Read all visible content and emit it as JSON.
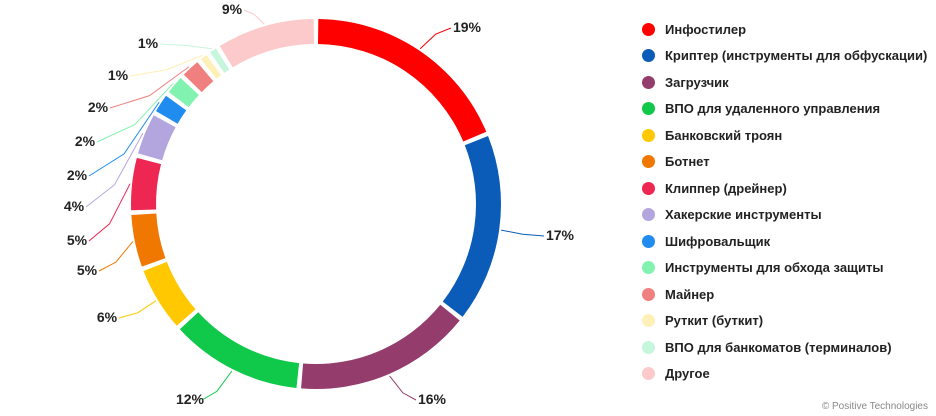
{
  "chart_data": {
    "type": "pie",
    "variant": "donut",
    "legend_position": "right",
    "slices": [
      {
        "label": "Инфостилер",
        "value": 19,
        "display": "19%",
        "color": "#ff0000"
      },
      {
        "label": "Криптер (инструменты для обфускации)",
        "value": 17,
        "display": "17%",
        "color": "#0a5cb8"
      },
      {
        "label": "Загрузчик",
        "value": 16,
        "display": "16%",
        "color": "#943c6c"
      },
      {
        "label": "ВПО для удаленного управления",
        "value": 12,
        "display": "12%",
        "color": "#10c84a"
      },
      {
        "label": "Банковский троян",
        "value": 6,
        "display": "6%",
        "color": "#ffc800"
      },
      {
        "label": "Ботнет",
        "value": 5,
        "display": "5%",
        "color": "#f07800"
      },
      {
        "label": "Клиппер (дрейнер)",
        "value": 5,
        "display": "5%",
        "color": "#ee2652"
      },
      {
        "label": "Хакерские инструменты",
        "value": 4,
        "display": "4%",
        "color": "#b3a6de"
      },
      {
        "label": "Шифровальщик",
        "value": 2,
        "display": "2%",
        "color": "#208cf0"
      },
      {
        "label": "Инструменты для обхода защиты",
        "value": 2,
        "display": "2%",
        "color": "#82f2b0"
      },
      {
        "label": "Майнер",
        "value": 2,
        "display": "2%",
        "color": "#f08080"
      },
      {
        "label": "Руткит (буткит)",
        "value": 1,
        "display": "1%",
        "color": "#fff0b8"
      },
      {
        "label": "ВПО для банкоматов (терминалов)",
        "value": 1,
        "display": "1%",
        "color": "#c6f6dc"
      },
      {
        "label": "Другое",
        "value": 9,
        "display": "9%",
        "color": "#fccaca"
      }
    ]
  },
  "credit": "© Positive Technologies"
}
